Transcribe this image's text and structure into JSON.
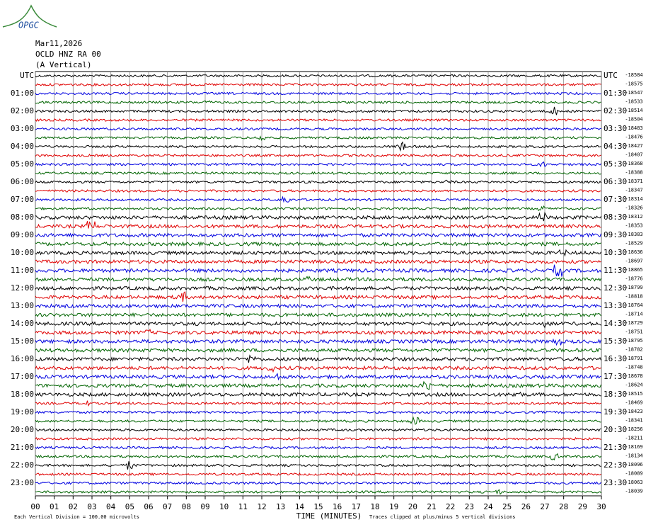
{
  "chart_data": {
    "type": "helicorder",
    "logo": "OPGC",
    "title": "Mar11,2026",
    "subtitle": "OCLD HNZ RA 00",
    "component": "(A Vertical)",
    "left_labels": [
      "UTC",
      null,
      "01:00",
      null,
      "02:00",
      null,
      "03:00",
      null,
      "04:00",
      null,
      "05:00",
      null,
      "06:00",
      null,
      "07:00",
      null,
      "08:00",
      null,
      "09:00",
      null,
      "10:00",
      null,
      "11:00",
      null,
      "12:00",
      null,
      "13:00",
      null,
      "14:00",
      null,
      "15:00",
      null,
      "16:00",
      null,
      "17:00",
      null,
      "18:00",
      null,
      "19:00",
      null,
      "20:00",
      null,
      "21:00",
      null,
      "22:00",
      null,
      "23:00",
      null
    ],
    "right_labels": [
      "UTC",
      null,
      "01:30",
      null,
      "02:30",
      null,
      "03:30",
      null,
      "04:30",
      null,
      "05:30",
      null,
      "06:30",
      null,
      "07:30",
      null,
      "08:30",
      null,
      "09:30",
      null,
      "10:30",
      null,
      "11:30",
      null,
      "12:30",
      null,
      "13:30",
      null,
      "14:30",
      null,
      "15:30",
      null,
      "16:30",
      null,
      "17:30",
      null,
      "18:30",
      null,
      "19:30",
      null,
      "20:30",
      null,
      "21:30",
      null,
      "22:30",
      null,
      "23:30",
      null
    ],
    "values": [
      -18584,
      -18575,
      -18547,
      -18533,
      -18514,
      -18504,
      -18483,
      -18476,
      -18427,
      -18407,
      -18368,
      -18388,
      -18371,
      -18347,
      -18314,
      -18326,
      -18312,
      -18353,
      -18383,
      -18529,
      -18636,
      -18697,
      -18865,
      -18776,
      -18799,
      -18818,
      -18764,
      -18714,
      -18729,
      -18751,
      -18795,
      -18782,
      -18791,
      -18748,
      -18678,
      -18624,
      -18515,
      -18469,
      -18423,
      -18341,
      -18256,
      -18211,
      -18169,
      -18134,
      -18096,
      -18089,
      -18063,
      -18039
    ],
    "colors": [
      "#000000",
      "#e00000",
      "#0000e0",
      "#006400"
    ],
    "xlim": [
      0,
      30
    ],
    "xticks": [
      {
        "value": 0,
        "label": "00"
      },
      {
        "value": 1,
        "label": "01"
      },
      {
        "value": 2,
        "label": "02"
      },
      {
        "value": 3,
        "label": "03"
      },
      {
        "value": 4,
        "label": "04"
      },
      {
        "value": 5,
        "label": "05"
      },
      {
        "value": 6,
        "label": "06"
      },
      {
        "value": 7,
        "label": "07"
      },
      {
        "value": 8,
        "label": "08"
      },
      {
        "value": 9,
        "label": "09"
      },
      10,
      11,
      12,
      13,
      14,
      15,
      16,
      17,
      18,
      19,
      20,
      21,
      22,
      23,
      24,
      25,
      26,
      27,
      28,
      29,
      30
    ],
    "xlabel": "TIME (MINUTES)",
    "note_left": "Each Vertical Division =  100.00 microvolts",
    "note_right": "Traces clipped at plus/minus 5 vertical divisions",
    "grid": true
  }
}
